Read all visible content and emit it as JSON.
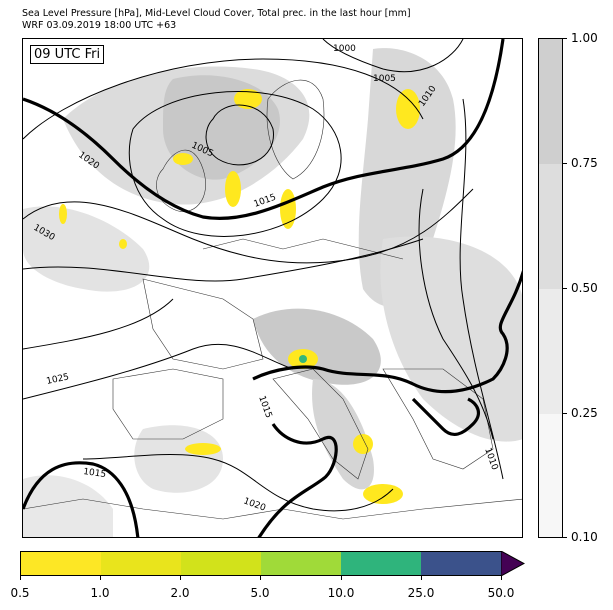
{
  "title": {
    "line1": "Sea Level Pressure [hPa], Mid-Level Cloud Cover, Total prec. in the last hour [mm]",
    "line2": "WRF 03.09.2019 18:00 UTC +63"
  },
  "map": {
    "valid_time": "09 UTC Fri",
    "isobar_labels": [
      "1000",
      "1005",
      "1010",
      "1005",
      "1020",
      "1015",
      "1030",
      "1025",
      "1015",
      "1015",
      "1020",
      "1010"
    ],
    "colors": {
      "isobar": "#000000",
      "cloud_light": "#e6e6e6",
      "cloud_mid": "#d4d4d4",
      "cloud_dense": "#bfbfbf",
      "precip_main": "#ffe81f",
      "precip_green": "#35b779",
      "precip_teal": "#2a9d8f"
    }
  },
  "colorbar_cloud": {
    "ticks": [
      "1.00",
      "0.75",
      "0.50",
      "0.25",
      "0.10"
    ],
    "levels": [
      {
        "range": "0.75-1.00",
        "color": "#cfcfcf"
      },
      {
        "range": "0.50-0.75",
        "color": "#dddddd"
      },
      {
        "range": "0.25-0.50",
        "color": "#ebebeb"
      },
      {
        "range": "0.10-0.25",
        "color": "#f7f7f7"
      }
    ]
  },
  "colorbar_precip": {
    "ticks": [
      "0.5",
      "1.0",
      "2.0",
      "5.0",
      "10.0",
      "25.0",
      "50.0"
    ],
    "levels": [
      {
        "range": "0.5-1.0",
        "color": "#fde725"
      },
      {
        "range": "1.0-2.0",
        "color": "#e9e41c"
      },
      {
        "range": "2.0-5.0",
        "color": "#d2e21b"
      },
      {
        "range": "5.0-10.0",
        "color": "#a0da39"
      },
      {
        "range": "10.0-25.0",
        "color": "#2fb47c"
      },
      {
        "range": "25.0-50.0",
        "color": "#3b528b"
      }
    ],
    "extend_color": "#440154"
  }
}
